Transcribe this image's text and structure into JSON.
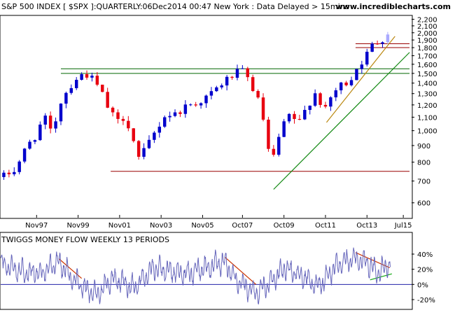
{
  "header": {
    "title": "S&P 500 INDEX [ $SPX ]:QUARTERLY:06Dec2014 00:47 New York : Data Delayed > 15mins",
    "site": "www.incrediblecharts.com"
  },
  "colors": {
    "up": "#0000cc",
    "down": "#e8000f",
    "last": "#aaaaff",
    "support_green": "#006600",
    "support_red": "#990000",
    "trend_green": "#118811",
    "trend_gold": "#bb8811",
    "indicator_line": "#6666bb",
    "indicator_trend_red": "#cc3300",
    "indicator_trend_green": "#11aa11",
    "zero_line": "#2222aa"
  },
  "chart_data": [
    {
      "type": "candlestick",
      "title": "S&P 500 INDEX [ $SPX ]:QUARTERLY",
      "x_ticks": [
        {
          "label": "Nov97",
          "t": 1997.83
        },
        {
          "label": "Nov99",
          "t": 1999.83
        },
        {
          "label": "Nov01",
          "t": 2001.83
        },
        {
          "label": "Nov03",
          "t": 2003.83
        },
        {
          "label": "Nov05",
          "t": 2005.83
        },
        {
          "label": "Oct07",
          "t": 2007.75
        },
        {
          "label": "Oct09",
          "t": 2009.75
        },
        {
          "label": "Oct11",
          "t": 2011.75
        },
        {
          "label": "Oct13",
          "t": 2013.75
        },
        {
          "label": "Jul15",
          "t": 2015.5
        }
      ],
      "y_ticks": [
        600,
        700,
        800,
        900,
        1000,
        1100,
        1200,
        1300,
        1400,
        1500,
        1600,
        1700,
        1800,
        1900,
        2000,
        2100,
        2200
      ],
      "y_tick_labels": [
        "600",
        "700",
        "800",
        "900",
        "1,000",
        "1,100",
        "1,200",
        "1,300",
        "1,400",
        "1,500",
        "1,600",
        "1,700",
        "1,800",
        "1,900",
        "2,000",
        "2,100",
        "2,200"
      ],
      "y_scale": "log",
      "ylim": [
        540,
        2250
      ],
      "x_range": [
        1996.1,
        2015.9
      ],
      "anchors": [
        {
          "t": 1996.2,
          "v": 720
        },
        {
          "t": 1996.8,
          "v": 760
        },
        {
          "t": 1997.4,
          "v": 900
        },
        {
          "t": 1997.8,
          "v": 970
        },
        {
          "t": 1998.2,
          "v": 1100
        },
        {
          "t": 1998.6,
          "v": 960
        },
        {
          "t": 1998.9,
          "v": 1200
        },
        {
          "t": 1999.4,
          "v": 1360
        },
        {
          "t": 1999.8,
          "v": 1460
        },
        {
          "t": 2000.2,
          "v": 1500
        },
        {
          "t": 2000.6,
          "v": 1420
        },
        {
          "t": 2000.9,
          "v": 1330
        },
        {
          "t": 2001.3,
          "v": 1160
        },
        {
          "t": 2001.7,
          "v": 1060
        },
        {
          "t": 2002.1,
          "v": 1110
        },
        {
          "t": 2002.5,
          "v": 930
        },
        {
          "t": 2002.75,
          "v": 820
        },
        {
          "t": 2003.0,
          "v": 860
        },
        {
          "t": 2003.5,
          "v": 980
        },
        {
          "t": 2004.0,
          "v": 1110
        },
        {
          "t": 2004.6,
          "v": 1130
        },
        {
          "t": 2005.0,
          "v": 1190
        },
        {
          "t": 2005.7,
          "v": 1230
        },
        {
          "t": 2006.2,
          "v": 1290
        },
        {
          "t": 2006.9,
          "v": 1420
        },
        {
          "t": 2007.4,
          "v": 1500
        },
        {
          "t": 2007.8,
          "v": 1520
        },
        {
          "t": 2008.3,
          "v": 1330
        },
        {
          "t": 2008.7,
          "v": 1140
        },
        {
          "t": 2008.9,
          "v": 900
        },
        {
          "t": 2009.2,
          "v": 800
        },
        {
          "t": 2009.6,
          "v": 1000
        },
        {
          "t": 2010.0,
          "v": 1110
        },
        {
          "t": 2010.5,
          "v": 1060
        },
        {
          "t": 2010.9,
          "v": 1200
        },
        {
          "t": 2011.3,
          "v": 1320
        },
        {
          "t": 2011.7,
          "v": 1130
        },
        {
          "t": 2012.0,
          "v": 1260
        },
        {
          "t": 2012.4,
          "v": 1370
        },
        {
          "t": 2012.9,
          "v": 1420
        },
        {
          "t": 2013.3,
          "v": 1580
        },
        {
          "t": 2013.7,
          "v": 1690
        },
        {
          "t": 2014.0,
          "v": 1830
        },
        {
          "t": 2014.4,
          "v": 1900
        },
        {
          "t": 2014.75,
          "v": 1990
        },
        {
          "t": 2014.95,
          "v": 2060
        }
      ],
      "annotations": {
        "support_green": [
          {
            "from": 1999.0,
            "to": 2015.8,
            "v": 1550
          },
          {
            "from": 1999.0,
            "to": 2015.8,
            "v": 1500
          }
        ],
        "support_red": [
          {
            "from": 2001.4,
            "to": 2015.8,
            "v": 750
          },
          {
            "from": 2013.2,
            "to": 2015.8,
            "v": 1850
          },
          {
            "from": 2013.2,
            "to": 2015.8,
            "v": 1800
          }
        ],
        "trend_green": {
          "t1": 2009.25,
          "v1": 660,
          "t2": 2015.8,
          "v2": 1740
        },
        "trend_gold": {
          "t1": 2011.8,
          "v1": 1060,
          "t2": 2015.1,
          "v2": 1950
        }
      }
    },
    {
      "type": "line",
      "title": "TWIGGS MONEY FLOW WEEKLY 13 PERIODS",
      "y_ticks": [
        -20,
        0,
        20,
        40
      ],
      "y_tick_labels": [
        "-20%",
        "0%",
        "20%",
        "40%"
      ],
      "ylim": [
        -32,
        52
      ],
      "x_range": [
        1996.1,
        2015.9
      ],
      "shape_anchors": [
        {
          "t": 1996.1,
          "v": 28
        },
        {
          "t": 1997.0,
          "v": 18
        },
        {
          "t": 1998.0,
          "v": 14
        },
        {
          "t": 1998.9,
          "v": 30
        },
        {
          "t": 1999.6,
          "v": 6
        },
        {
          "t": 2000.7,
          "v": -14
        },
        {
          "t": 2001.5,
          "v": 8
        },
        {
          "t": 2002.5,
          "v": -4
        },
        {
          "t": 2003.5,
          "v": 22
        },
        {
          "t": 2005.0,
          "v": 14
        },
        {
          "t": 2006.2,
          "v": 24
        },
        {
          "t": 2006.9,
          "v": 30
        },
        {
          "t": 2007.3,
          "v": 12
        },
        {
          "t": 2008.3,
          "v": -12
        },
        {
          "t": 2009.0,
          "v": 0
        },
        {
          "t": 2009.8,
          "v": 22
        },
        {
          "t": 2010.7,
          "v": 10
        },
        {
          "t": 2011.4,
          "v": -4
        },
        {
          "t": 2012.3,
          "v": 26
        },
        {
          "t": 2013.0,
          "v": 34
        },
        {
          "t": 2013.7,
          "v": 30
        },
        {
          "t": 2014.3,
          "v": 16
        },
        {
          "t": 2014.6,
          "v": 22
        },
        {
          "t": 2014.9,
          "v": 30
        }
      ],
      "annotations": {
        "trend_red": [
          {
            "t1": 1998.9,
            "v1": 34,
            "t2": 2000.0,
            "v2": 8
          },
          {
            "t1": 2006.9,
            "v1": 36,
            "t2": 2008.4,
            "v2": 0
          },
          {
            "t1": 2013.2,
            "v1": 42,
            "t2": 2014.85,
            "v2": 22
          }
        ],
        "trend_green": {
          "t1": 2013.9,
          "v1": 6,
          "t2": 2014.95,
          "v2": 14
        },
        "zero_line": {
          "from": 1996.1,
          "to": 2015.9,
          "v": 0
        }
      }
    }
  ]
}
